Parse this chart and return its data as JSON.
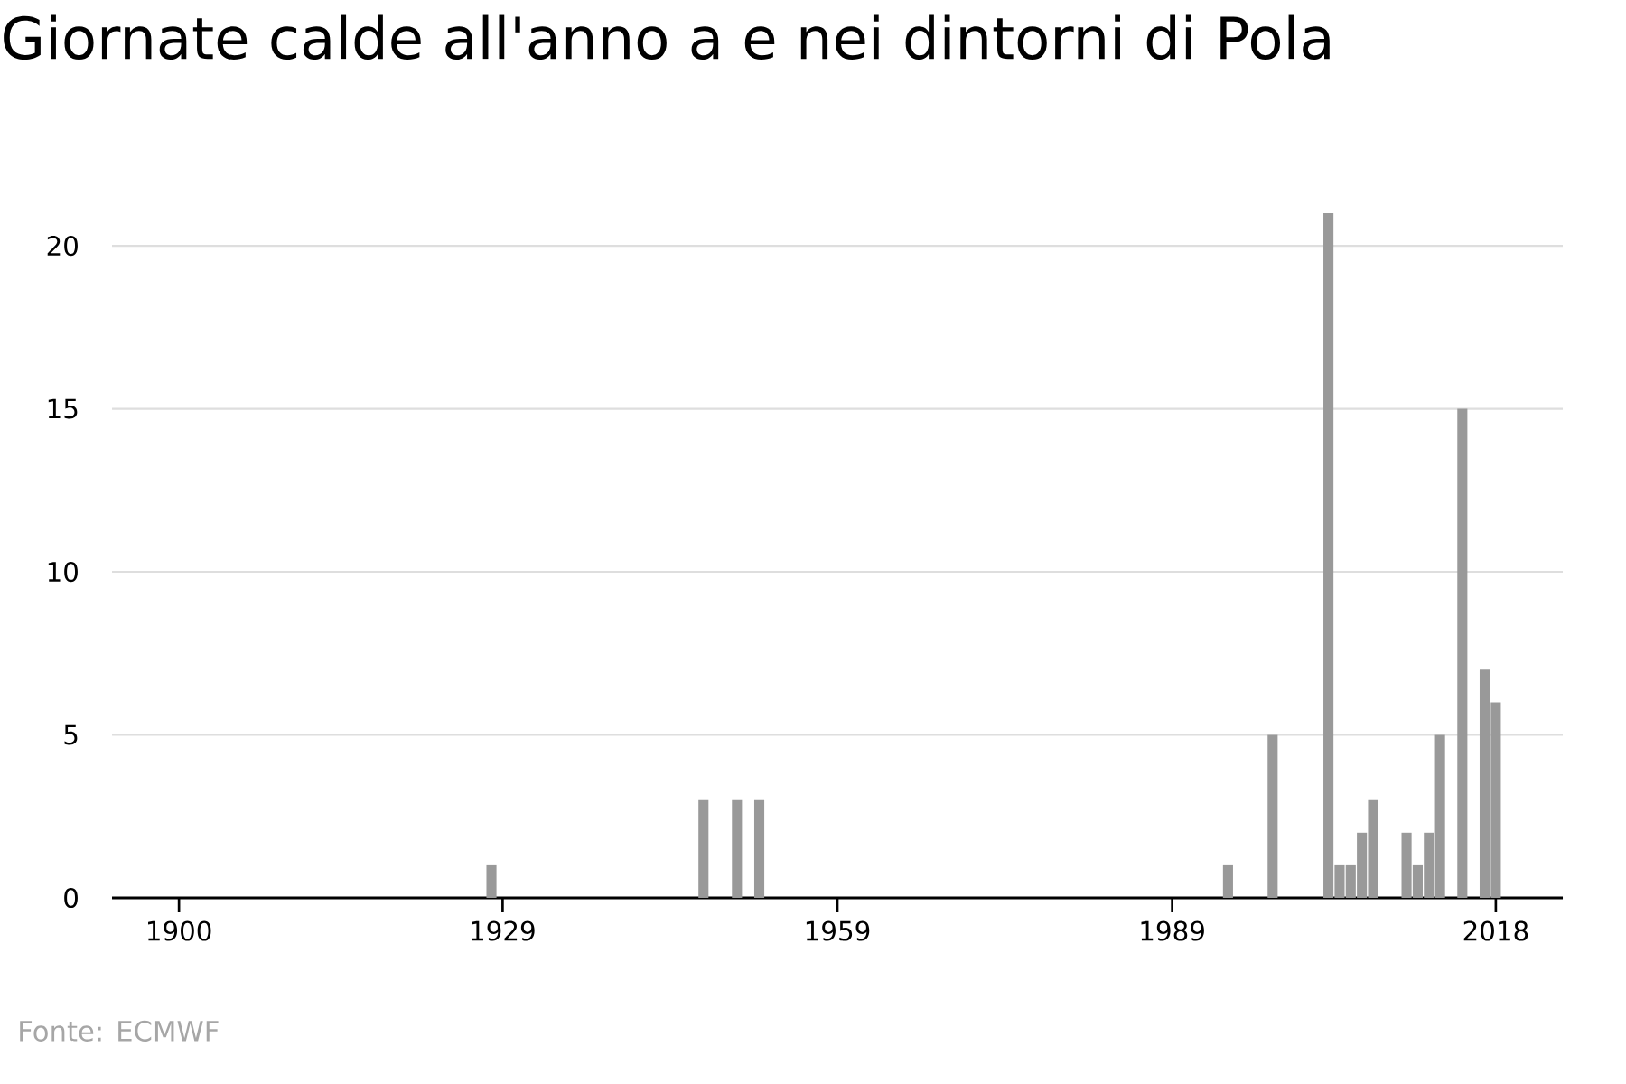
{
  "chart_data": {
    "type": "bar",
    "title": "Giornate calde all'anno a e nei dintorni di Pola",
    "x": [
      1928,
      1947,
      1950,
      1952,
      1994,
      1998,
      2003,
      2004,
      2005,
      2006,
      2007,
      2010,
      2011,
      2012,
      2013,
      2015,
      2017,
      2018
    ],
    "values": [
      1,
      3,
      3,
      3,
      1,
      5,
      21,
      1,
      1,
      2,
      3,
      2,
      1,
      2,
      5,
      15,
      7,
      6
    ],
    "color": "#999999",
    "xlim": [
      1894,
      2024
    ],
    "xticks": [
      1900,
      1929,
      1959,
      1989,
      2018
    ],
    "ylim": [
      0,
      21
    ],
    "yticks": [
      0,
      5,
      10,
      15,
      20
    ],
    "grid": "y",
    "annotations": [
      "Fonte: ECMWF"
    ]
  }
}
